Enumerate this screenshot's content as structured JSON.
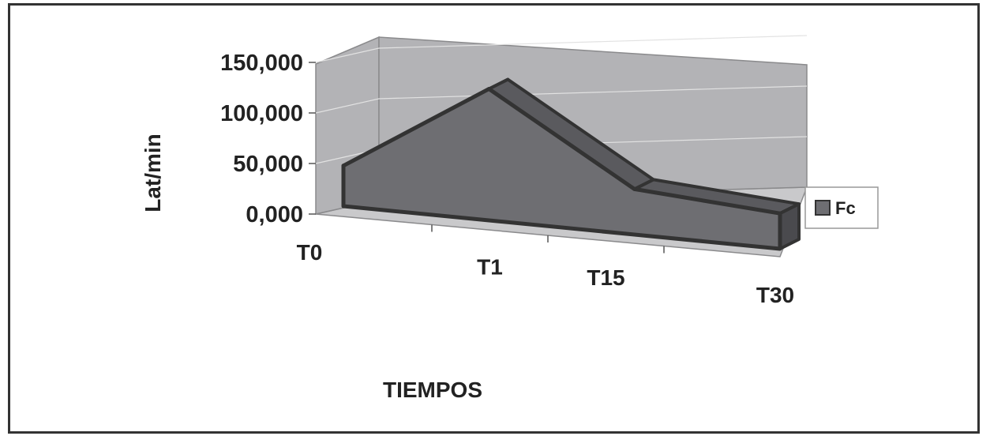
{
  "chart_data": {
    "type": "area",
    "subtype": "3d-area",
    "categories": [
      "T0",
      "T1",
      "T15",
      "T30"
    ],
    "series": [
      {
        "name": "Fc",
        "values": [
          40,
          130,
          45,
          35
        ]
      }
    ],
    "yticks": [
      "0,000",
      "50,000",
      "100,000",
      "150,000"
    ],
    "ylim": [
      0,
      150
    ],
    "ylabel": "Lat/min",
    "xlabel": "TIEMPOS",
    "title": "",
    "grid": true,
    "legend": "right",
    "colors": {
      "series_front": "#6e6e72",
      "series_top": "#5a5a5e",
      "series_side": "#4a4a4e",
      "series_outline": "#333333",
      "walls": "#b3b3b6",
      "floor": "#c9c9cb",
      "gridline": "#e2e2e2"
    }
  }
}
